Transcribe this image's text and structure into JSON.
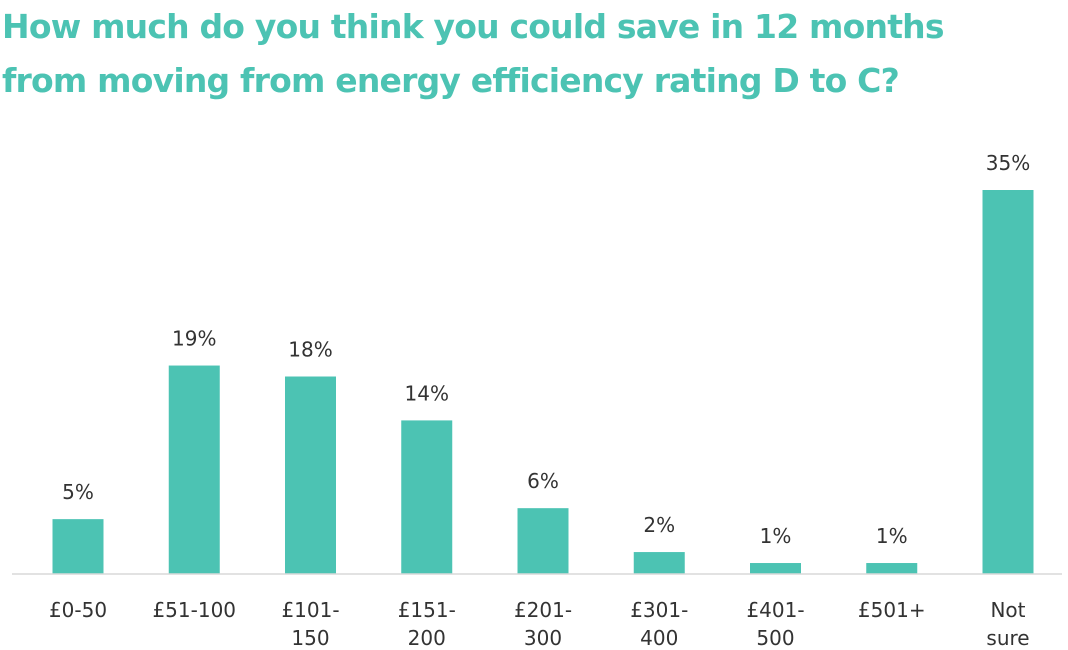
{
  "colors": {
    "accent": "#4cc3b3",
    "text": "#333333",
    "axis": "#d9d9d9"
  },
  "chart_data": {
    "type": "bar",
    "title": "How much do you think you could save in 12 months\nfrom moving from energy efficiency rating D to C?",
    "xlabel": "",
    "ylabel": "",
    "categories": [
      [
        "£0-50"
      ],
      [
        "£51-100"
      ],
      [
        "£101-",
        "150"
      ],
      [
        "£151-",
        "200"
      ],
      [
        "£201-",
        "300"
      ],
      [
        "£301-",
        "400"
      ],
      [
        "£401-",
        "500"
      ],
      [
        "£501+"
      ],
      [
        "Not",
        "sure"
      ]
    ],
    "values": [
      5,
      19,
      18,
      14,
      6,
      2,
      1,
      1,
      35
    ],
    "value_labels": [
      "5%",
      "19%",
      "18%",
      "14%",
      "6%",
      "2%",
      "1%",
      "1%",
      "35%"
    ],
    "unit": "%",
    "ylim": [
      0,
      35
    ],
    "grid": false,
    "legend": "none"
  }
}
